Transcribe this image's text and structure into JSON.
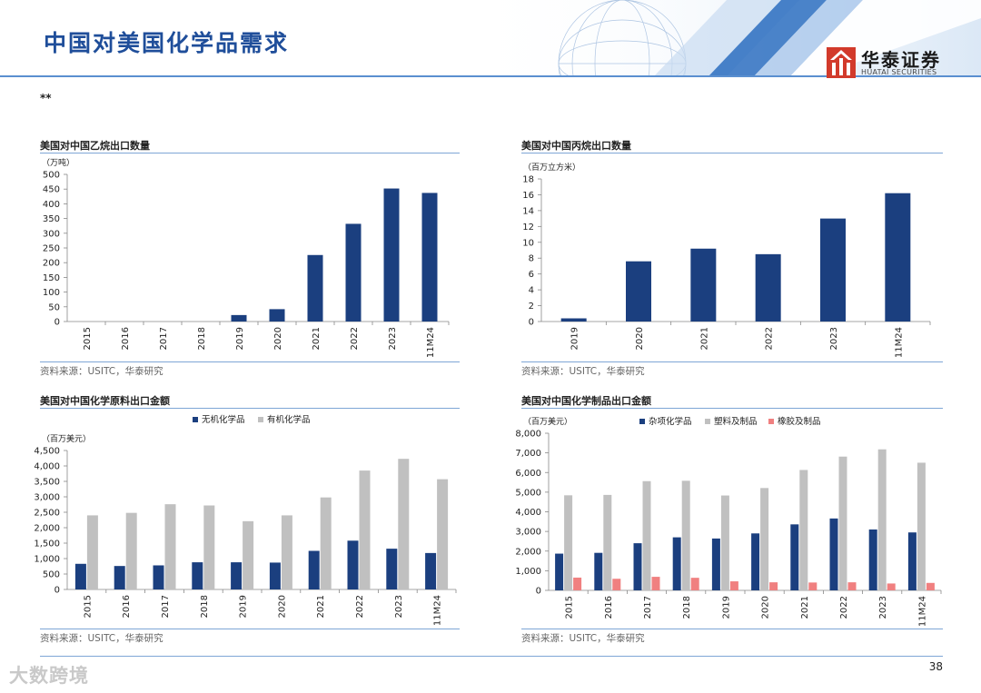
{
  "header": {
    "title": "中国对美国化学品需求",
    "logo_name": "华泰证券",
    "logo_en": "HUATAI SECURITIES"
  },
  "note": "**",
  "page_number": "38",
  "watermark": "大数跨境",
  "colors": {
    "navy": "#1b3f7f",
    "gray": "#c0c0c0",
    "salmon": "#f08080",
    "brand_red": "#d23a2b",
    "title_blue": "#1f4e9a"
  },
  "chart_data": [
    {
      "id": "c1",
      "type": "bar",
      "title": "美国对中国乙烷出口数量",
      "unit": "（万吨）",
      "categories": [
        "2015",
        "2016",
        "2017",
        "2018",
        "2019",
        "2020",
        "2021",
        "2022",
        "2023",
        "11M24"
      ],
      "series": [
        {
          "values": [
            0,
            0,
            0,
            0,
            22,
            42,
            226,
            332,
            452,
            437
          ],
          "color": "#1b3f7f"
        }
      ],
      "ylim": [
        0,
        500
      ],
      "yticks": [
        0,
        50,
        100,
        150,
        200,
        250,
        300,
        350,
        400,
        450,
        500
      ],
      "ytick_labels": [
        "0",
        "50",
        "100",
        "150",
        "200",
        "250",
        "300",
        "350",
        "400",
        "450",
        "500"
      ],
      "source": "资料来源：USITC，华泰研究"
    },
    {
      "id": "c2",
      "type": "bar",
      "title": "美国对中国丙烷出口数量",
      "unit": "（百万立方米）",
      "categories": [
        "2019",
        "2020",
        "2021",
        "2022",
        "2023",
        "11M24"
      ],
      "series": [
        {
          "values": [
            0.4,
            7.6,
            9.2,
            8.5,
            13.0,
            16.2
          ],
          "color": "#1b3f7f"
        }
      ],
      "ylim": [
        0,
        18
      ],
      "yticks": [
        0,
        2,
        4,
        6,
        8,
        10,
        12,
        14,
        16,
        18
      ],
      "ytick_labels": [
        "0",
        "2",
        "4",
        "6",
        "8",
        "10",
        "12",
        "14",
        "16",
        "18"
      ],
      "source": "资料来源：USITC，华泰研究"
    },
    {
      "id": "c3",
      "type": "bar",
      "title": "美国对中国化学原料出口金额",
      "unit": "（百万美元）",
      "categories": [
        "2015",
        "2016",
        "2017",
        "2018",
        "2019",
        "2020",
        "2021",
        "2022",
        "2023",
        "11M24"
      ],
      "series": [
        {
          "name": "无机化学品",
          "values": [
            830,
            760,
            780,
            880,
            880,
            870,
            1250,
            1580,
            1320,
            1180
          ],
          "color": "#1b3f7f"
        },
        {
          "name": "有机化学品",
          "values": [
            2400,
            2480,
            2760,
            2720,
            2210,
            2400,
            2980,
            3850,
            4230,
            3570
          ],
          "color": "#c0c0c0"
        }
      ],
      "ylim": [
        0,
        4500
      ],
      "yticks": [
        0,
        500,
        1000,
        1500,
        2000,
        2500,
        3000,
        3500,
        4000,
        4500
      ],
      "ytick_labels": [
        "0",
        "500",
        "1,000",
        "1,500",
        "2,000",
        "2,500",
        "3,000",
        "3,500",
        "4,000",
        "4,500"
      ],
      "legend": "top",
      "source": "资料来源：USITC，华泰研究"
    },
    {
      "id": "c4",
      "type": "bar",
      "title": "美国对中国化学制品出口金额",
      "unit": "（百万美元）",
      "categories": [
        "2015",
        "2016",
        "2017",
        "2018",
        "2019",
        "2020",
        "2021",
        "2022",
        "2023",
        "11M24"
      ],
      "series": [
        {
          "name": "杂项化学品",
          "values": [
            1870,
            1910,
            2400,
            2700,
            2640,
            2900,
            3360,
            3660,
            3100,
            2950
          ],
          "color": "#1b3f7f"
        },
        {
          "name": "塑料及制品",
          "values": [
            4840,
            4860,
            5560,
            5580,
            4830,
            5210,
            6130,
            6810,
            7180,
            6500
          ],
          "color": "#c0c0c0"
        },
        {
          "name": "橡胶及制品",
          "values": [
            650,
            590,
            690,
            640,
            460,
            410,
            400,
            410,
            350,
            380
          ],
          "color": "#f08080"
        }
      ],
      "ylim": [
        0,
        8000
      ],
      "yticks": [
        0,
        1000,
        2000,
        3000,
        4000,
        5000,
        6000,
        7000,
        8000
      ],
      "ytick_labels": [
        "0",
        "1,000",
        "2,000",
        "3,000",
        "4,000",
        "5,000",
        "6,000",
        "7,000",
        "8,000"
      ],
      "legend": "top",
      "source": "资料来源：USITC，华泰研究"
    }
  ]
}
